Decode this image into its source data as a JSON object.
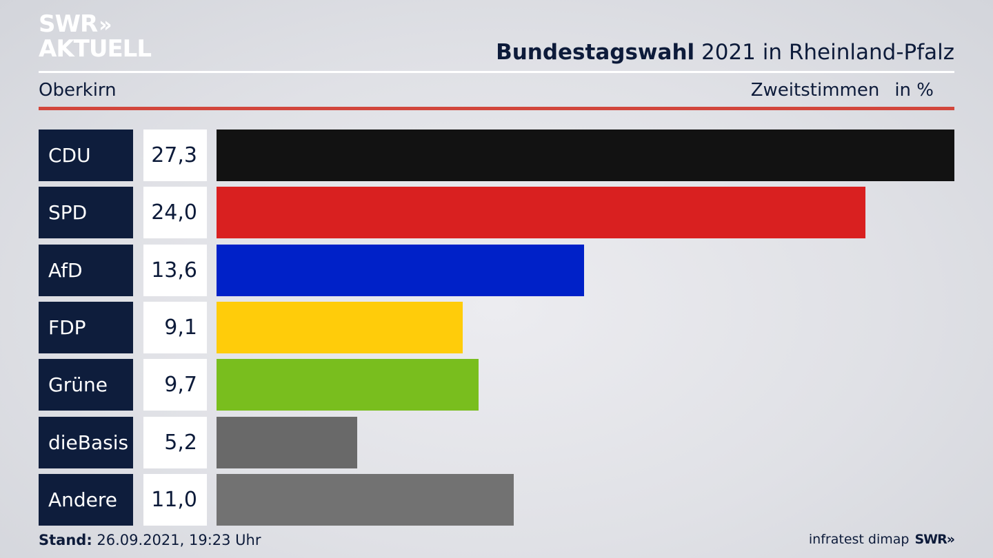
{
  "logo": {
    "line1": "SWR",
    "arrows": "»",
    "line2": "AKTUELL"
  },
  "header": {
    "title_bold": "Bundestagswahl",
    "title_rest": " 2021 in Rheinland-Pfalz",
    "location": "Oberkirn",
    "measure": "Zweitstimmen",
    "unit": "in %"
  },
  "chart_data": {
    "type": "bar",
    "orientation": "horizontal",
    "categories": [
      "CDU",
      "SPD",
      "AfD",
      "FDP",
      "Grüne",
      "dieBasis",
      "Andere"
    ],
    "values": [
      27.3,
      24.0,
      13.6,
      9.1,
      9.7,
      5.2,
      11.0
    ],
    "value_labels": [
      "27,3",
      "24,0",
      "13,6",
      "9,1",
      "9,7",
      "5,2",
      "11,0"
    ],
    "colors": [
      "#121212",
      "#d92020",
      "#0021c8",
      "#ffcc0a",
      "#79be1e",
      "#696969",
      "#727272"
    ],
    "title": "Bundestagswahl 2021 in Rheinland-Pfalz",
    "xlim": [
      0,
      27.3
    ]
  },
  "footer": {
    "stand_label": "Stand:",
    "stand_value": " 26.09.2021, 19:23 Uhr",
    "source": "infratest dimap",
    "source_logo": "SWR»"
  }
}
